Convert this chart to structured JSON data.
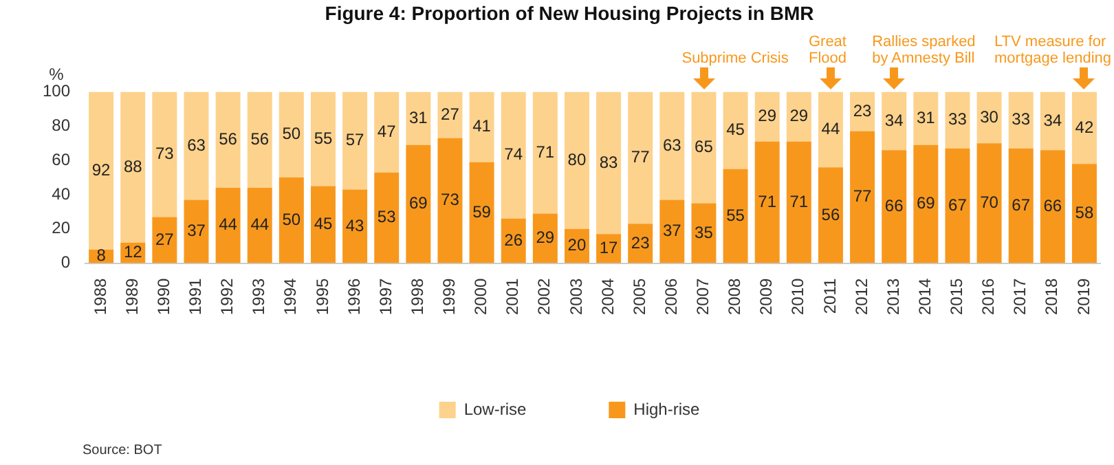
{
  "chart_data": {
    "type": "bar",
    "title": "Figure 4: Proportion of New Housing Projects in BMR",
    "ylabel": "%",
    "categories": [
      "1988",
      "1989",
      "1990",
      "1991",
      "1992",
      "1993",
      "1994",
      "1995",
      "1996",
      "1997",
      "1998",
      "1999",
      "2000",
      "2001",
      "2002",
      "2003",
      "2004",
      "2005",
      "2006",
      "2007",
      "2008",
      "2009",
      "2010",
      "2011",
      "2012",
      "2013",
      "2014",
      "2015",
      "2016",
      "2017",
      "2018",
      "2019"
    ],
    "series": [
      {
        "name": "High-rise",
        "color": "#f7981d",
        "values": [
          8,
          12,
          27,
          37,
          44,
          44,
          50,
          45,
          43,
          53,
          69,
          73,
          59,
          26,
          29,
          20,
          17,
          23,
          37,
          35,
          55,
          71,
          71,
          56,
          77,
          66,
          69,
          67,
          70,
          67,
          66,
          58
        ]
      },
      {
        "name": "Low-rise",
        "color": "#fdd28c",
        "values": [
          92,
          88,
          73,
          63,
          56,
          56,
          50,
          55,
          57,
          47,
          31,
          27,
          41,
          74,
          71,
          80,
          83,
          77,
          63,
          65,
          45,
          29,
          29,
          44,
          23,
          34,
          31,
          33,
          30,
          33,
          34,
          42
        ]
      }
    ],
    "stacked": true,
    "ylim": [
      0,
      100
    ],
    "yticks": [
      0,
      20,
      40,
      60,
      80,
      100
    ],
    "grid": false,
    "legend": "bottom",
    "data_labels": true,
    "annotations": [
      {
        "text": "Subprime Crisis",
        "x": "2007",
        "y": 100
      },
      {
        "text": "Great Flood",
        "x": "2011",
        "y": 100
      },
      {
        "text": "Rallies sparked by Amnesty Bill",
        "x": "2013",
        "y": 100
      },
      {
        "text": "LTV measure for mortgage lending",
        "x": "2019",
        "y": 100
      },
      "Source: BOT"
    ]
  }
}
